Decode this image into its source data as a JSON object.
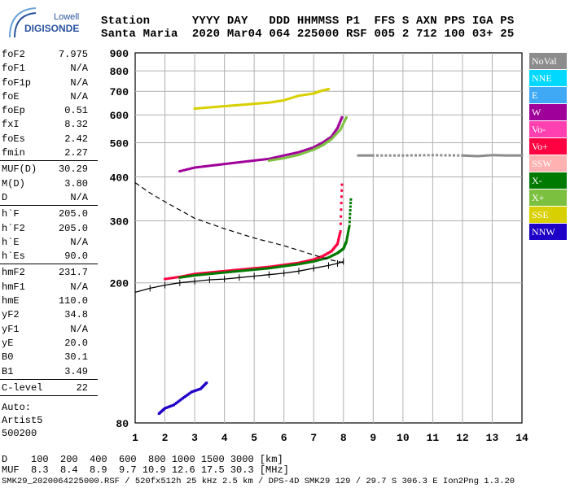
{
  "logo": {
    "line1": "Lowell",
    "line2": "DIGISONDE",
    "colors": {
      "brand": "#2a53a0",
      "accent": "#6aa2d8"
    }
  },
  "header": {
    "line1": "Station      YYYY DAY   DDD HHMMSS P1  FFS S AXN PPS IGA PS",
    "line2": "Santa Maria  2020 Mar04 064 225000 RSF 005 2 712 100 03+ 25"
  },
  "parameters": {
    "group1": [
      {
        "name": "foF2",
        "value": "7.975"
      },
      {
        "name": "foF1",
        "value": "N/A"
      },
      {
        "name": "foF1p",
        "value": "N/A"
      },
      {
        "name": "foE",
        "value": "N/A"
      },
      {
        "name": "foEp",
        "value": "0.51"
      },
      {
        "name": "fxI",
        "value": "8.32"
      },
      {
        "name": "foEs",
        "value": "2.42"
      },
      {
        "name": "fmin",
        "value": "2.27"
      }
    ],
    "group2": [
      {
        "name": "MUF(D)",
        "value": "30.29"
      },
      {
        "name": "M(D)",
        "value": "3.80"
      },
      {
        "name": "D",
        "value": "N/A"
      }
    ],
    "group3": [
      {
        "name": "h`F",
        "value": "205.0"
      },
      {
        "name": "h`F2",
        "value": "205.0"
      },
      {
        "name": "h`E",
        "value": "N/A"
      },
      {
        "name": "h`Es",
        "value": "90.0"
      }
    ],
    "group4": [
      {
        "name": "hmF2",
        "value": "231.7"
      },
      {
        "name": "hmF1",
        "value": "N/A"
      },
      {
        "name": "hmE",
        "value": "110.0"
      },
      {
        "name": "yF2",
        "value": "34.8"
      },
      {
        "name": "yF1",
        "value": "N/A"
      },
      {
        "name": "yE",
        "value": "20.0"
      },
      {
        "name": "B0",
        "value": "30.1"
      },
      {
        "name": "B1",
        "value": "3.49"
      }
    ],
    "group5": [
      {
        "name": "C-level",
        "value": "22"
      }
    ],
    "auto": [
      "Auto:",
      "Artist5",
      "500200"
    ]
  },
  "legend": [
    {
      "label": "NoVal",
      "color": "#8c8c8c"
    },
    {
      "label": "NNE",
      "color": "#00d8ff"
    },
    {
      "label": "E",
      "color": "#3fa9f5"
    },
    {
      "label": "W",
      "color": "#a0009a"
    },
    {
      "label": "Vo-",
      "color": "#ff40b0"
    },
    {
      "label": "Vo+",
      "color": "#ff0040"
    },
    {
      "label": "SSW",
      "color": "#ffb0b0"
    },
    {
      "label": "X-",
      "color": "#007a00"
    },
    {
      "label": "X+",
      "color": "#7cc040"
    },
    {
      "label": "SSE",
      "color": "#d8d000"
    },
    {
      "label": "NNW",
      "color": "#1e00c8"
    }
  ],
  "footer": {
    "line1": "D    100  200  400  600  800 1000 1500 3000 [km]",
    "line2": "MUF  8.3  8.4  8.9  9.7 10.9 12.6 17.5 30.3 [MHz]",
    "line3": "SMK29_2020064225000.RSF / 520fx512h 25 kHz 2.5 km / DPS-4D SMK29 129 / 29.7 S 306.3 E Ion2Png 1.3.20"
  },
  "chart_data": {
    "type": "scatter",
    "title": "",
    "xlabel": "",
    "ylabel": "",
    "xlim": [
      1,
      14
    ],
    "ylim": [
      80,
      900
    ],
    "y_scale": "log",
    "grid": true,
    "x_ticks": [
      1,
      2,
      3,
      4,
      5,
      6,
      7,
      8,
      9,
      10,
      11,
      12,
      13,
      14
    ],
    "y_ticks": [
      80,
      200,
      300,
      400,
      500,
      600,
      700,
      800,
      900
    ],
    "series": [
      {
        "name": "Vo+",
        "x": [
          2.0,
          2.5,
          3.0,
          3.5,
          4.0,
          4.5,
          5.0,
          5.5,
          6.0,
          6.5,
          7.0,
          7.3,
          7.6,
          7.8,
          7.9,
          7.95
        ],
        "values": [
          205,
          208,
          212,
          214,
          216,
          218,
          220,
          222,
          225,
          228,
          233,
          238,
          246,
          258,
          280,
          380
        ]
      },
      {
        "name": "X-",
        "x": [
          2.5,
          3.0,
          3.5,
          4.0,
          4.5,
          5.0,
          5.5,
          6.0,
          6.5,
          7.0,
          7.5,
          7.8,
          8.0,
          8.1,
          8.2,
          8.25
        ],
        "values": [
          207,
          210,
          212,
          214,
          216,
          218,
          220,
          223,
          226,
          230,
          236,
          243,
          250,
          262,
          290,
          345
        ]
      },
      {
        "name": "W",
        "x": [
          2.5,
          3.0,
          3.5,
          4.0,
          4.5,
          5.0,
          5.5,
          6.0,
          6.5,
          7.0,
          7.3,
          7.6,
          7.8,
          7.95
        ],
        "values": [
          415,
          425,
          430,
          435,
          440,
          445,
          450,
          460,
          470,
          485,
          500,
          520,
          550,
          590
        ]
      },
      {
        "name": "X+",
        "x": [
          5.5,
          6.0,
          6.5,
          7.0,
          7.3,
          7.6,
          7.9,
          8.1
        ],
        "values": [
          445,
          452,
          462,
          478,
          492,
          512,
          545,
          590
        ]
      },
      {
        "name": "SSE",
        "x": [
          3.0,
          3.5,
          4.0,
          4.5,
          5.0,
          5.5,
          6.0,
          6.5,
          7.0,
          7.2,
          7.5
        ],
        "values": [
          625,
          630,
          635,
          640,
          645,
          650,
          660,
          680,
          690,
          700,
          710
        ]
      },
      {
        "name": "NoVal",
        "x": [
          8.5,
          9.0,
          10.0,
          11.0,
          12.0,
          12.5,
          13.0,
          13.5,
          14.0
        ],
        "values": [
          460,
          460,
          460,
          461,
          460,
          458,
          461,
          460,
          460
        ]
      },
      {
        "name": "NNW",
        "x": [
          1.8,
          2.0,
          2.3,
          2.6,
          2.9,
          3.2,
          3.4
        ],
        "values": [
          85,
          88,
          90,
          94,
          98,
          100,
          104
        ]
      }
    ],
    "profile": {
      "x": [
        1.0,
        1.5,
        2.0,
        2.5,
        3.0,
        3.5,
        4.0,
        4.5,
        5.0,
        5.5,
        6.0,
        6.5,
        7.0,
        7.5,
        7.8,
        8.0
      ],
      "values": [
        188,
        193,
        197,
        200,
        202,
        204,
        205,
        207,
        209,
        211,
        213,
        216,
        220,
        224,
        227,
        230
      ]
    },
    "model": {
      "x": [
        1.0,
        1.5,
        2.0,
        2.5,
        3.0,
        4.0,
        5.0,
        6.0,
        7.0,
        7.5,
        8.0
      ],
      "values": [
        385,
        360,
        340,
        322,
        305,
        285,
        268,
        255,
        240,
        233,
        228
      ]
    }
  }
}
